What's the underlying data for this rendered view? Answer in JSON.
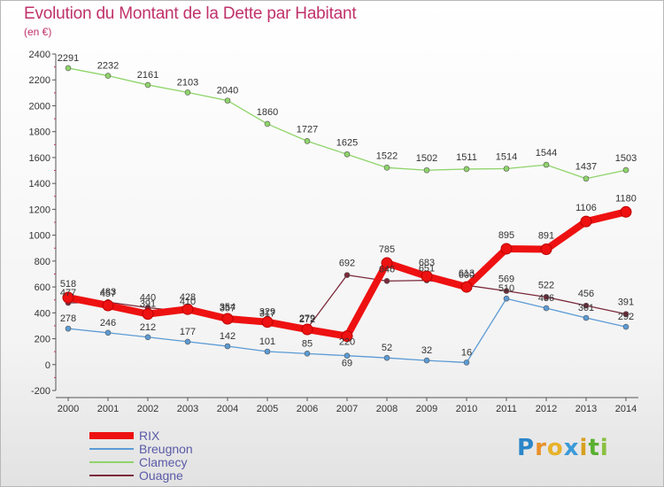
{
  "title": "Evolution du Montant de la Dette par Habitant",
  "unit_label": "(en €)",
  "logo": {
    "text": "Proxiti"
  },
  "chart_data": {
    "type": "line",
    "x": [
      "2000",
      "2001",
      "2002",
      "2003",
      "2004",
      "2005",
      "2006",
      "2007",
      "2008",
      "2009",
      "2010",
      "2011",
      "2012",
      "2013",
      "2014"
    ],
    "ylim": [
      -200,
      2400
    ],
    "yticks": [
      -200,
      0,
      200,
      400,
      600,
      800,
      1000,
      1200,
      1400,
      1600,
      1800,
      2000,
      2200,
      2400
    ],
    "grid": false,
    "legend_position": "bottom-left",
    "series": [
      {
        "name": "Clamecy",
        "color": "#8fd46a",
        "values": [
          2291,
          2232,
          2161,
          2103,
          2040,
          1860,
          1727,
          1625,
          1522,
          1502,
          1511,
          1514,
          1544,
          1437,
          1503
        ]
      },
      {
        "name": "Breugnon",
        "color": "#5b9bd5",
        "values": [
          278,
          246,
          212,
          177,
          142,
          101,
          85,
          69,
          52,
          32,
          16,
          510,
          436,
          361,
          292
        ]
      },
      {
        "name": "Ouagne",
        "color": "#7b2a3a",
        "values": [
          477,
          483,
          440,
          410,
          357,
          317,
          279,
          692,
          646,
          651,
          613,
          569,
          522,
          456,
          391
        ]
      },
      {
        "name": "RIX",
        "color": "#ee1111",
        "values": [
          518,
          457,
          391,
          428,
          354,
          329,
          272,
          220,
          785,
          683,
          600,
          895,
          891,
          1106,
          1180
        ]
      }
    ],
    "data_labels": [
      [
        "2291",
        "2232",
        "2161",
        "2103",
        "2040",
        "1860",
        "1727",
        "1625",
        "1522",
        "1502",
        "1511",
        "1514",
        "1544",
        "1437",
        "1503"
      ],
      [
        "278",
        "246",
        "212",
        "177",
        "142",
        "101",
        "85",
        "69",
        "52",
        "32",
        "16",
        "510",
        "436",
        "361",
        "292"
      ],
      [
        "477",
        "483",
        "440",
        "410",
        "357",
        "317",
        "279",
        "692",
        "646",
        "651",
        "613",
        "569",
        "522",
        "456",
        "391"
      ],
      [
        "518",
        "457",
        "391",
        "428",
        "354",
        "329",
        "272",
        "220",
        "785",
        "683",
        "600",
        "895",
        "891",
        "1106",
        "1180"
      ]
    ]
  }
}
